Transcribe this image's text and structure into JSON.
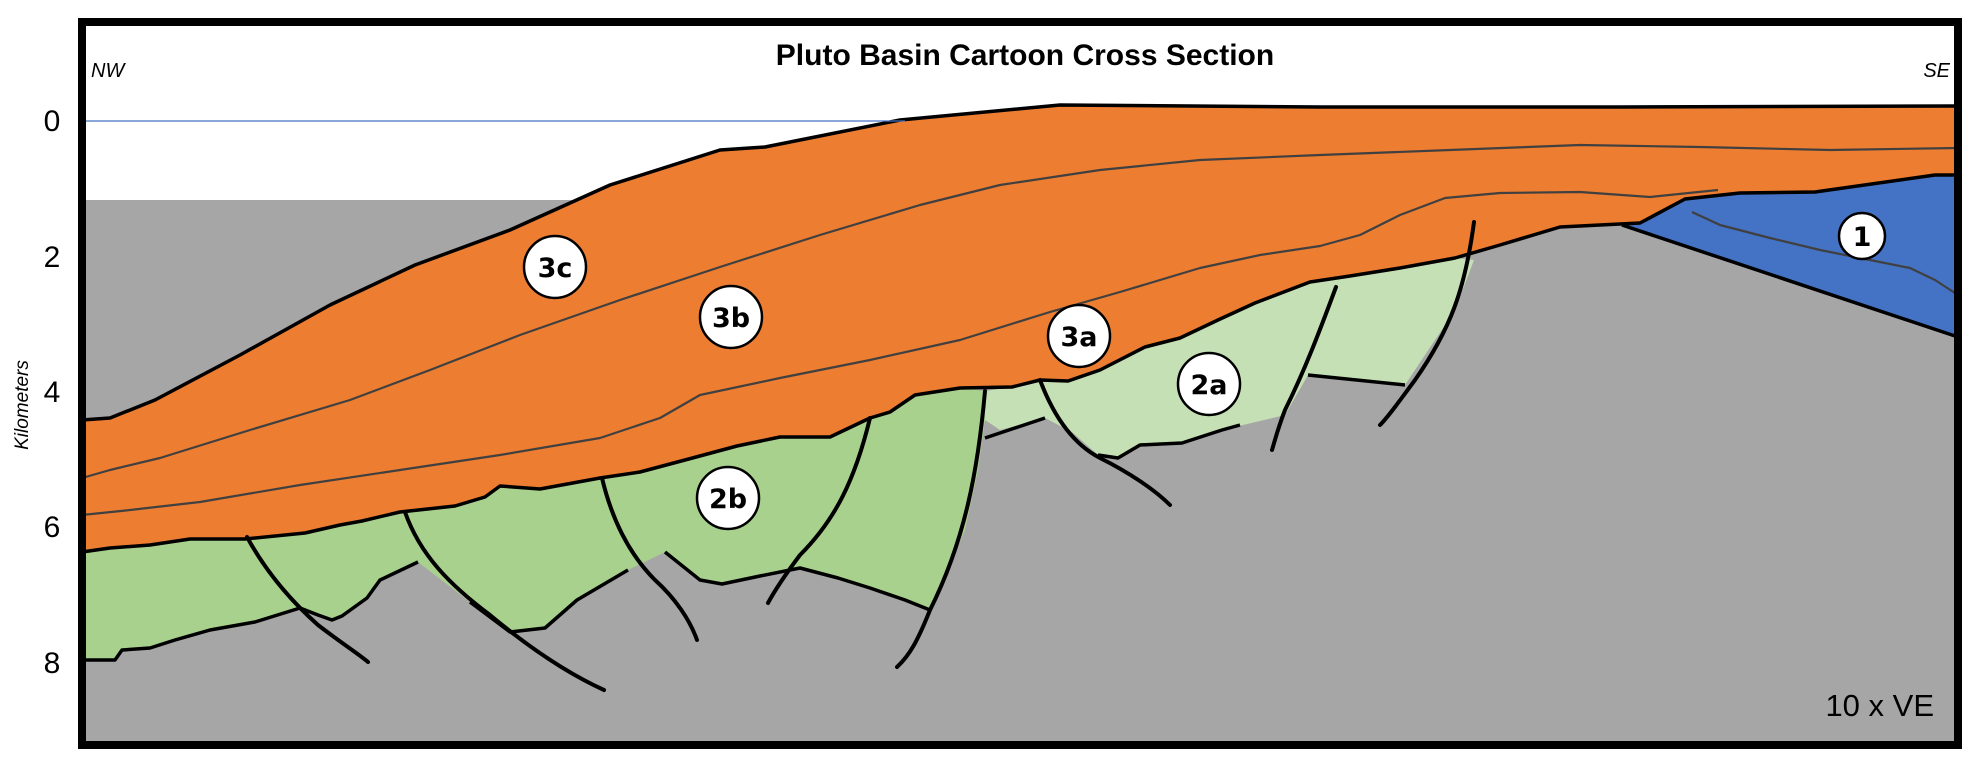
{
  "title": "Pluto Basin Cartoon Cross Section",
  "orientation": {
    "left": "NW",
    "right": "SE"
  },
  "y_axis": {
    "label": "Kilometers",
    "ticks": [
      "0",
      "2",
      "4",
      "6",
      "8"
    ]
  },
  "vertical_exaggeration": "10 x VE",
  "units": [
    {
      "id": "1",
      "label": "1"
    },
    {
      "id": "2a",
      "label": "2a"
    },
    {
      "id": "2b",
      "label": "2b"
    },
    {
      "id": "3a",
      "label": "3a"
    },
    {
      "id": "3b",
      "label": "3b"
    },
    {
      "id": "3c",
      "label": "3c"
    }
  ],
  "colors": {
    "basement": "#a6a6a6",
    "unit_1": "#4472c4",
    "unit_2a": "#c5e0b4",
    "unit_2b": "#a9d18e",
    "unit_3": "#ed7d31",
    "sea_level": "#4472c4",
    "frame": "#000000"
  }
}
